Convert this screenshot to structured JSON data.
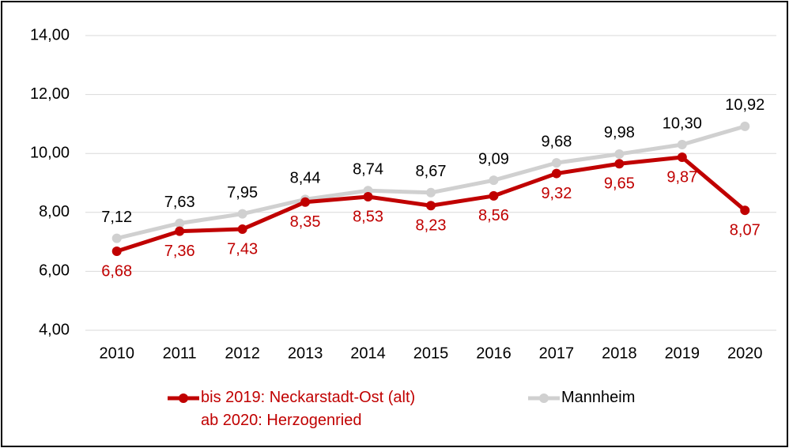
{
  "chart_data": {
    "type": "line",
    "categories": [
      "2010",
      "2011",
      "2012",
      "2013",
      "2014",
      "2015",
      "2016",
      "2017",
      "2018",
      "2019",
      "2020"
    ],
    "series": [
      {
        "name": "bis 2019: Neckarstadt-Ost (alt)\nab 2020: Herzogenried",
        "color": "#c00000",
        "values": [
          6.68,
          7.36,
          7.43,
          8.35,
          8.53,
          8.23,
          8.56,
          9.32,
          9.65,
          9.87,
          8.07
        ],
        "value_labels": [
          "6,68",
          "7,36",
          "7,43",
          "8,35",
          "8,53",
          "8,23",
          "8,56",
          "9,32",
          "9,65",
          "9,87",
          "8,07"
        ]
      },
      {
        "name": "Mannheim",
        "color": "#d0d0d0",
        "values": [
          7.12,
          7.63,
          7.95,
          8.44,
          8.74,
          8.67,
          9.09,
          9.68,
          9.98,
          10.3,
          10.92
        ],
        "value_labels": [
          "7,12",
          "7,63",
          "7,95",
          "8,44",
          "8,74",
          "8,67",
          "9,09",
          "9,68",
          "9,98",
          "10,30",
          "10,92"
        ]
      }
    ],
    "ylim": [
      4,
      14
    ],
    "yticks": [
      {
        "value": 4,
        "label": "4,00"
      },
      {
        "value": 6,
        "label": "6,00"
      },
      {
        "value": 8,
        "label": "8,00"
      },
      {
        "value": 10,
        "label": "10,00"
      },
      {
        "value": 12,
        "label": "12,00"
      },
      {
        "value": 14,
        "label": "14,00"
      }
    ],
    "grid": true,
    "legend": "bottom"
  }
}
